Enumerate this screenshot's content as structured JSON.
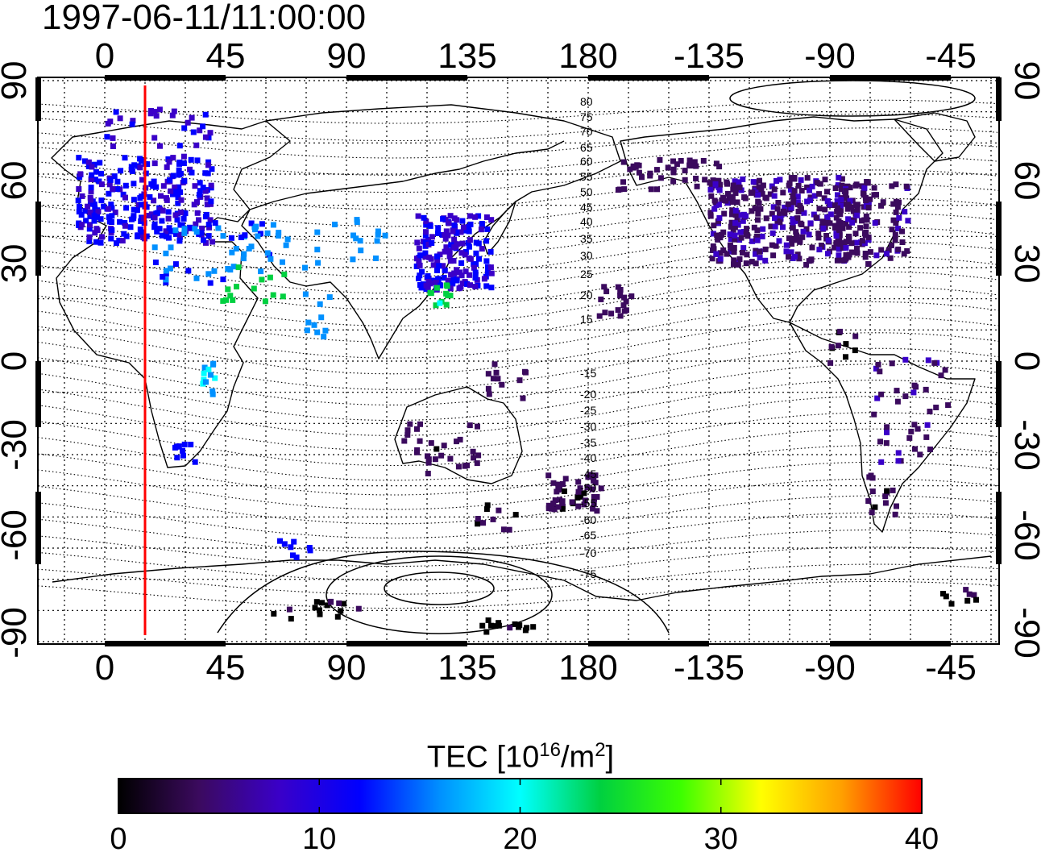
{
  "title": "1997-06-11/11:00:00",
  "map": {
    "top_lon_labels": [
      "0",
      "45",
      "90",
      "135",
      "180",
      "-135",
      "-90",
      "-45"
    ],
    "bottom_lon_labels": [
      "0",
      "45",
      "90",
      "135",
      "180",
      "-135",
      "-90",
      "-45"
    ],
    "left_lat_labels": [
      "90",
      "60",
      "30",
      "0",
      "-30",
      "-60",
      "-90"
    ],
    "right_lat_labels": [
      "90",
      "60",
      "30",
      "0",
      "-30",
      "-60",
      "-90"
    ],
    "mag_lat_contour_labels": [
      "80",
      "75",
      "70",
      "65",
      "60",
      "55",
      "50",
      "45",
      "40",
      "35",
      "30",
      "25",
      "20",
      "15",
      "-15",
      "-20",
      "-25",
      "-30",
      "-35",
      "-40",
      "-45",
      "-50",
      "-55",
      "-60",
      "-65",
      "-70",
      "-75"
    ],
    "noon_meridian_lon": 15,
    "colors": {
      "meridian": "#ff0000",
      "coast": "#000000",
      "grid": "#000000"
    }
  },
  "colorbar": {
    "label_main": "TEC  [10",
    "label_exp1": "16",
    "label_mid": "/m",
    "label_exp2": "2",
    "label_end": "]",
    "tick_labels": [
      "0",
      "10",
      "20",
      "30",
      "40"
    ],
    "min": 0,
    "max": 40,
    "colormap_stops": [
      "#000000",
      "#3b0a5e",
      "#3a00c8",
      "#0000ff",
      "#0090ff",
      "#00ffff",
      "#00d040",
      "#3cff00",
      "#ffff00",
      "#ffa000",
      "#ff0000"
    ]
  }
}
